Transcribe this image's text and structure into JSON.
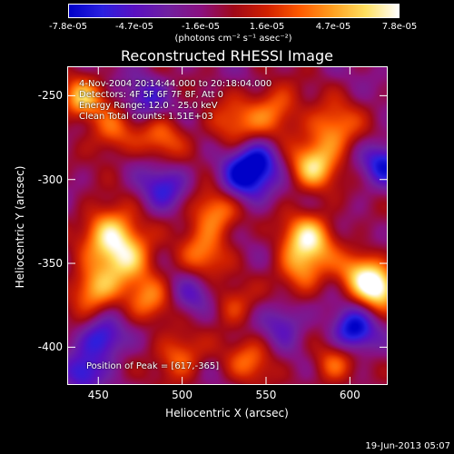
{
  "chart_data": {
    "type": "heatmap",
    "title": "Reconstructed RHESSI Image",
    "xlabel": "Heliocentric X (arcsec)",
    "ylabel": "Heliocentric Y (arcsec)",
    "xlim": [
      432,
      622
    ],
    "ylim": [
      -422,
      -233
    ],
    "x_ticks": [
      450,
      500,
      550,
      600
    ],
    "y_ticks": [
      -250,
      -300,
      -350,
      -400
    ],
    "colorbar": {
      "label": "(photons cm⁻² s⁻¹ asec⁻²)",
      "range": [
        -7.8e-05,
        7.8e-05
      ],
      "ticks": [
        "-7.8e-05",
        "-4.7e-05",
        "-1.6e-05",
        "1.6e-05",
        "4.7e-05",
        "7.8e-05"
      ],
      "colormap": [
        "#0000c8",
        "#2a20e0",
        "#5a10c0",
        "#7020a0",
        "#8a1080",
        "#a00818",
        "#d02000",
        "#ff5a00",
        "#ffa020",
        "#ffe060",
        "#ffffff"
      ]
    },
    "annotations": [
      "4-Nov-2004 20:14:44.000 to 20:18:04.000",
      "Detectors: 4F 5F 6F 7F 8F, Att 0",
      "Energy Range: 12.0 - 25.0 keV",
      "Clean     Total counts: 1.51E+03"
    ],
    "peak_label": "Position of Peak = [617,-365]",
    "peak": [
      617,
      -365
    ],
    "blobs": [
      {
        "x": 617,
        "y": -365,
        "v": 1.0,
        "s": 9
      },
      {
        "x": 606,
        "y": -355,
        "v": 0.7,
        "s": 10
      },
      {
        "x": 466,
        "y": -345,
        "v": 0.9,
        "s": 12
      },
      {
        "x": 455,
        "y": -330,
        "v": 0.75,
        "s": 11
      },
      {
        "x": 447,
        "y": -366,
        "v": 0.8,
        "s": 10
      },
      {
        "x": 480,
        "y": -372,
        "v": 0.55,
        "s": 10
      },
      {
        "x": 520,
        "y": -318,
        "v": 0.8,
        "s": 11
      },
      {
        "x": 512,
        "y": -345,
        "v": 0.55,
        "s": 10
      },
      {
        "x": 575,
        "y": -335,
        "v": 0.95,
        "s": 11
      },
      {
        "x": 570,
        "y": -355,
        "v": 0.6,
        "s": 10
      },
      {
        "x": 578,
        "y": -292,
        "v": 0.85,
        "s": 10
      },
      {
        "x": 590,
        "y": -270,
        "v": 0.7,
        "s": 11
      },
      {
        "x": 555,
        "y": -258,
        "v": 0.6,
        "s": 11
      },
      {
        "x": 530,
        "y": -268,
        "v": 0.5,
        "s": 11
      },
      {
        "x": 440,
        "y": -252,
        "v": 0.8,
        "s": 9
      },
      {
        "x": 458,
        "y": -272,
        "v": 0.55,
        "s": 10
      },
      {
        "x": 488,
        "y": -275,
        "v": 0.5,
        "s": 10
      },
      {
        "x": 498,
        "y": -405,
        "v": 0.6,
        "s": 10
      },
      {
        "x": 540,
        "y": -408,
        "v": 0.5,
        "s": 10
      },
      {
        "x": 590,
        "y": -410,
        "v": 0.55,
        "s": 9
      },
      {
        "x": 530,
        "y": -375,
        "v": 0.45,
        "s": 9
      },
      {
        "x": 535,
        "y": -300,
        "v": -0.9,
        "s": 11
      },
      {
        "x": 546,
        "y": -288,
        "v": -0.6,
        "s": 9
      },
      {
        "x": 488,
        "y": -305,
        "v": -0.55,
        "s": 10
      },
      {
        "x": 602,
        "y": -390,
        "v": -0.85,
        "s": 9
      },
      {
        "x": 620,
        "y": -290,
        "v": -0.7,
        "s": 9
      },
      {
        "x": 452,
        "y": -395,
        "v": -0.75,
        "s": 9
      },
      {
        "x": 440,
        "y": -415,
        "v": -0.6,
        "s": 8
      },
      {
        "x": 478,
        "y": -252,
        "v": -0.5,
        "s": 9
      },
      {
        "x": 560,
        "y": -385,
        "v": -0.45,
        "s": 9
      },
      {
        "x": 505,
        "y": -370,
        "v": -0.4,
        "s": 9
      }
    ]
  },
  "footer": {
    "date": "19-Jun-2013 05:07"
  }
}
